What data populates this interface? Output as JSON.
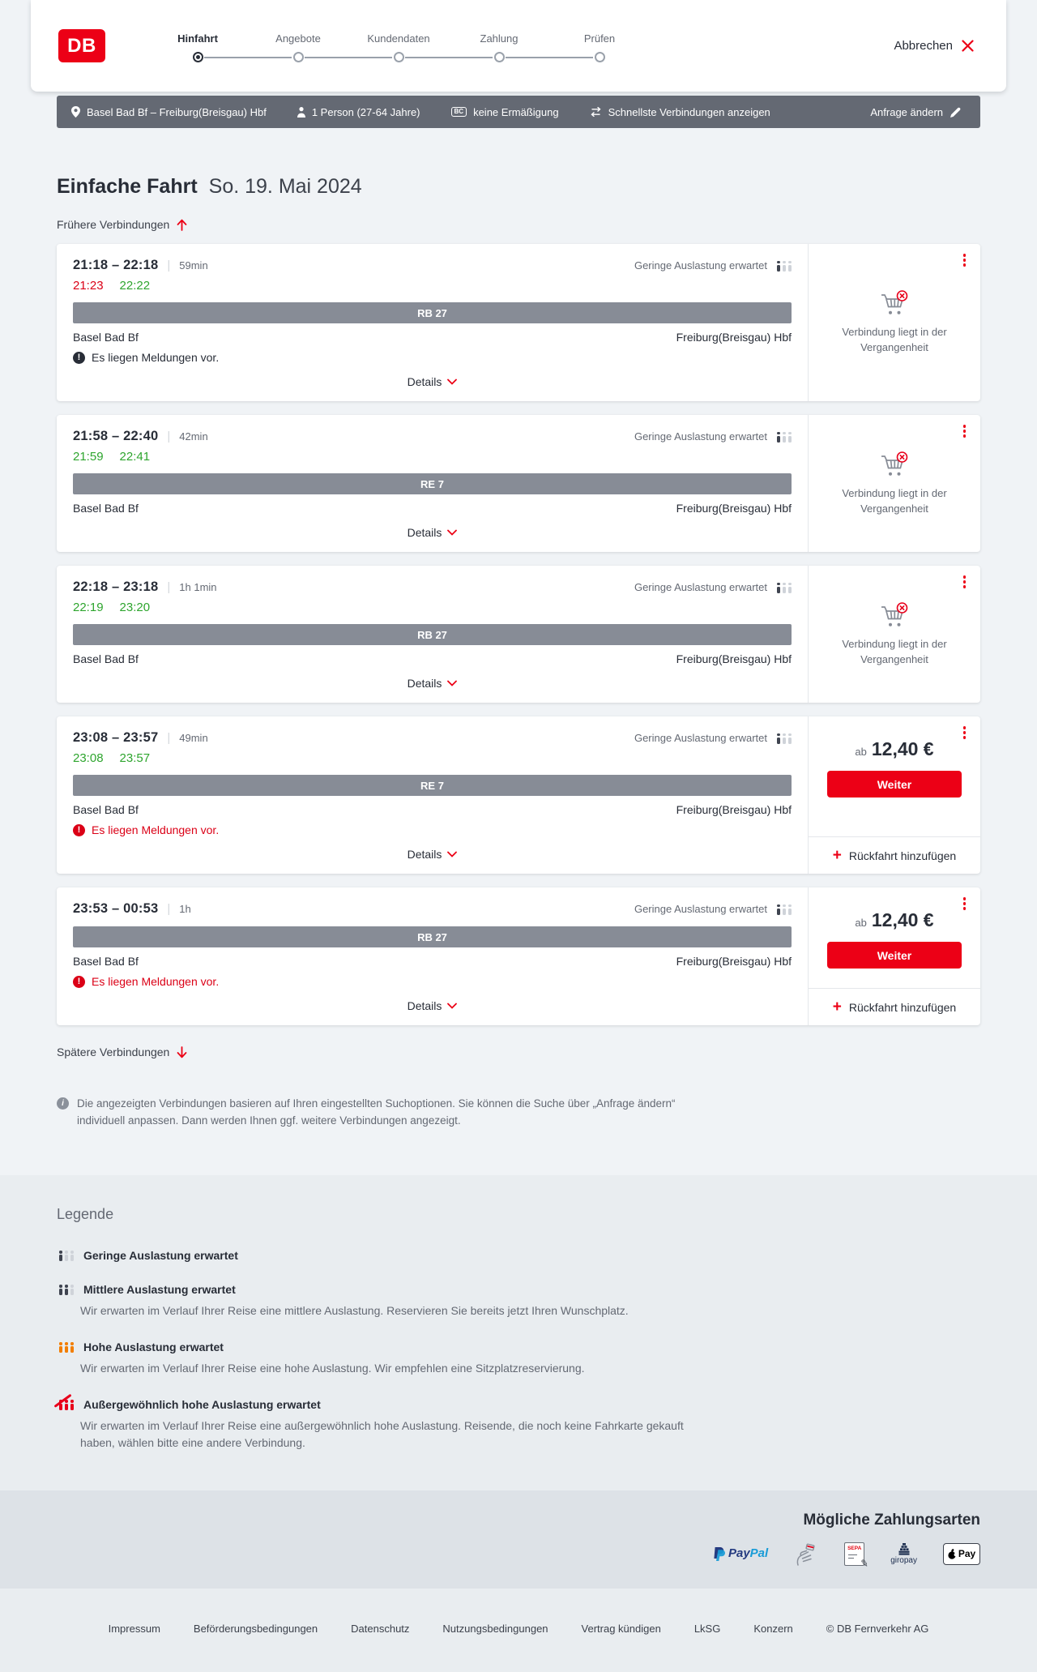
{
  "colors": {
    "brand_red": "#ec0016",
    "delayed_red": "#db0016",
    "ontime_green": "#2ea52e",
    "occupancy_orange": "#f27e00",
    "bar_gray": "#646973"
  },
  "brand": {
    "logo_text": "DB"
  },
  "header": {
    "steps": [
      {
        "label": "Hinfahrt",
        "active": true
      },
      {
        "label": "Angebote",
        "active": false
      },
      {
        "label": "Kundendaten",
        "active": false
      },
      {
        "label": "Zahlung",
        "active": false
      },
      {
        "label": "Prüfen",
        "active": false
      }
    ],
    "cancel_label": "Abbrechen"
  },
  "journey_bar": {
    "route": "Basel Bad Bf – Freiburg(Breisgau) Hbf",
    "passengers": "1 Person (27-64 Jahre)",
    "bc_badge": "BC",
    "discount": "keine Ermäßigung",
    "fastest": "Schnellste Verbindungen anzeigen",
    "edit_label": "Anfrage ändern"
  },
  "main": {
    "title": "Einfache Fahrt",
    "date": "So. 19. Mai 2024",
    "earlier_label": "Frühere Verbindungen",
    "later_label": "Spätere Verbindungen",
    "info_text": "Die angezeigten Verbindungen basieren auf Ihren eingestellten Suchoptionen. Sie können die Suche über „Anfrage ändern“ individuell anpassen. Dann werden Ihnen ggf. weitere Verbindungen angezeigt.",
    "connections": [
      {
        "time_range": "21:18 – 22:18",
        "duration": "59min",
        "occupancy": "Geringe Auslastung erwartet",
        "occupancy_level": "low",
        "actual": [
          {
            "value": "21:23",
            "tone": "delayed"
          },
          {
            "value": "22:22",
            "tone": "ontime"
          }
        ],
        "train": "RB 27",
        "from": "Basel Bad Bf",
        "to": "Freiburg(Breisgau) Hbf",
        "message": {
          "text": "Es liegen Meldungen vor.",
          "tone": "dark"
        },
        "details_label": "Details",
        "side": {
          "kind": "past",
          "note": "Verbindung liegt in der Vergangenheit"
        }
      },
      {
        "time_range": "21:58 – 22:40",
        "duration": "42min",
        "occupancy": "Geringe Auslastung erwartet",
        "occupancy_level": "low",
        "actual": [
          {
            "value": "21:59",
            "tone": "ontime"
          },
          {
            "value": "22:41",
            "tone": "ontime"
          }
        ],
        "train": "RE 7",
        "from": "Basel Bad Bf",
        "to": "Freiburg(Breisgau) Hbf",
        "message": null,
        "details_label": "Details",
        "side": {
          "kind": "past",
          "note": "Verbindung liegt in der Vergangenheit"
        }
      },
      {
        "time_range": "22:18 – 23:18",
        "duration": "1h 1min",
        "occupancy": "Geringe Auslastung erwartet",
        "occupancy_level": "low",
        "actual": [
          {
            "value": "22:19",
            "tone": "ontime"
          },
          {
            "value": "23:20",
            "tone": "ontime"
          }
        ],
        "train": "RB 27",
        "from": "Basel Bad Bf",
        "to": "Freiburg(Breisgau) Hbf",
        "message": null,
        "details_label": "Details",
        "side": {
          "kind": "past",
          "note": "Verbindung liegt in der Vergangenheit"
        }
      },
      {
        "time_range": "23:08 – 23:57",
        "duration": "49min",
        "occupancy": "Geringe Auslastung erwartet",
        "occupancy_level": "low",
        "actual": [
          {
            "value": "23:08",
            "tone": "ontime"
          },
          {
            "value": "23:57",
            "tone": "ontime"
          }
        ],
        "train": "RE 7",
        "from": "Basel Bad Bf",
        "to": "Freiburg(Breisgau) Hbf",
        "message": {
          "text": "Es liegen Meldungen vor.",
          "tone": "alert"
        },
        "details_label": "Details",
        "side": {
          "kind": "price",
          "prefix": "ab",
          "amount": "12,40 €",
          "cta": "Weiter",
          "add_return": "Rückfahrt hinzufügen"
        }
      },
      {
        "time_range": "23:53 – 00:53",
        "duration": "1h",
        "occupancy": "Geringe Auslastung erwartet",
        "occupancy_level": "low",
        "actual": [],
        "train": "RB 27",
        "from": "Basel Bad Bf",
        "to": "Freiburg(Breisgau) Hbf",
        "message": {
          "text": "Es liegen Meldungen vor.",
          "tone": "alert"
        },
        "details_label": "Details",
        "side": {
          "kind": "price",
          "prefix": "ab",
          "amount": "12,40 €",
          "cta": "Weiter",
          "add_return": "Rückfahrt hinzufügen"
        }
      }
    ]
  },
  "legend": {
    "heading": "Legende",
    "items": [
      {
        "title": "Geringe Auslastung erwartet",
        "level": "low",
        "desc": ""
      },
      {
        "title": "Mittlere Auslastung erwartet",
        "level": "medium",
        "desc": "Wir erwarten im Verlauf Ihrer Reise eine mittlere Auslastung. Reservieren Sie bereits jetzt Ihren Wunschplatz."
      },
      {
        "title": "Hohe Auslastung erwartet",
        "level": "high",
        "desc": "Wir erwarten im Verlauf Ihrer Reise eine hohe Auslastung. Wir empfehlen eine Sitzplatzreservierung."
      },
      {
        "title": "Außergewöhnlich hohe Auslastung erwartet",
        "level": "very-high",
        "desc": "Wir erwarten im Verlauf Ihrer Reise eine außergewöhnlich hohe Auslastung. Reisende, die noch keine Fahrkarte gekauft haben, wählen bitte eine andere Verbindung."
      }
    ]
  },
  "payment": {
    "heading": "Mögliche Zahlungsarten",
    "paypal_label_1": "Pay",
    "paypal_label_2": "Pal",
    "sepa_label": "SEPA",
    "giropay_label": "giropay",
    "applepay_label": "Pay"
  },
  "footer": {
    "links": [
      "Impressum",
      "Beförderungsbedingungen",
      "Datenschutz",
      "Nutzungsbedingungen",
      "Vertrag kündigen",
      "LkSG",
      "Konzern"
    ],
    "copyright": "© DB Fernverkehr AG"
  }
}
